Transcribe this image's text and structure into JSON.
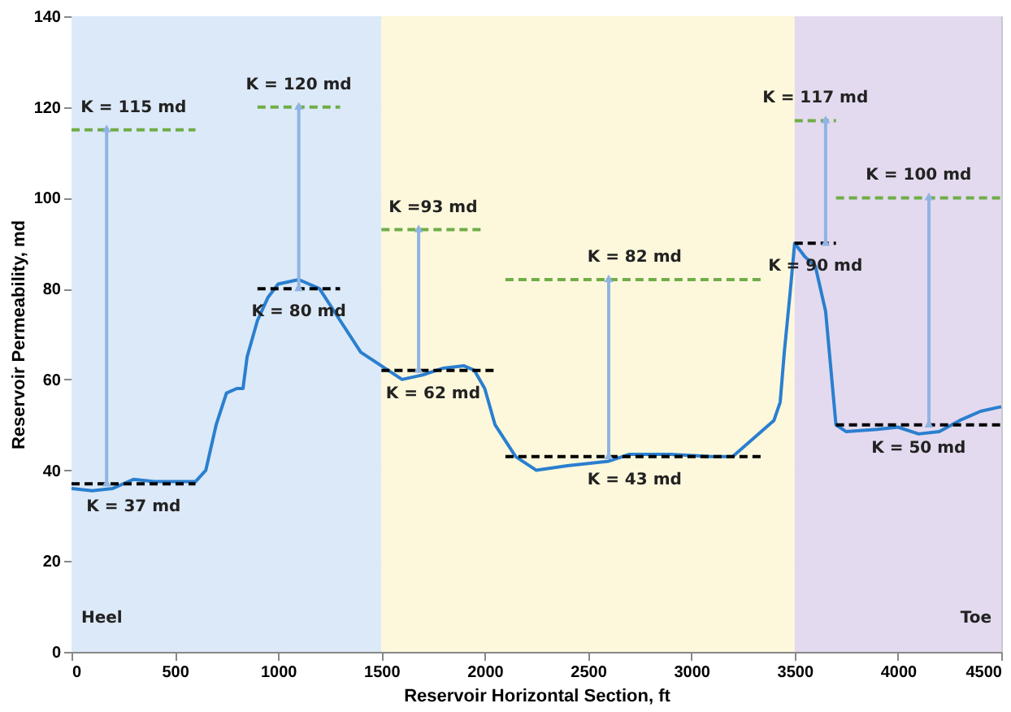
{
  "chart_data": {
    "type": "line",
    "xlabel": "Reservoir Horizontal Section, ft",
    "ylabel": "Reservoir Permeability, md",
    "xlim": [
      0,
      4500
    ],
    "xticks": [
      0,
      500,
      1000,
      1500,
      2000,
      2500,
      3000,
      3500,
      4000,
      4500
    ],
    "ylim": [
      0,
      140
    ],
    "yticks": [
      0,
      20,
      40,
      60,
      80,
      100,
      120,
      140
    ],
    "grid": true,
    "bands": [
      {
        "axis": "x",
        "from": 0,
        "to": 1500,
        "label": "Heel",
        "color": "#dce9f8"
      },
      {
        "axis": "x",
        "from": 1500,
        "to": 3500,
        "color": "#fdf8dc"
      },
      {
        "axis": "x",
        "from": 3500,
        "to": 4500,
        "label": "Toe",
        "color": "#e3daef"
      }
    ],
    "series": [
      {
        "color": "#2a7fcf",
        "line_style": "solid",
        "x": [
          0,
          100,
          200,
          300,
          400,
          600,
          650,
          700,
          750,
          800,
          830,
          850,
          900,
          950,
          1000,
          1100,
          1200,
          1300,
          1400,
          1500,
          1600,
          1700,
          1800,
          1900,
          1950,
          2000,
          2050,
          2150,
          2250,
          2400,
          2600,
          2700,
          2900,
          3100,
          3200,
          3300,
          3400,
          3430,
          3450,
          3480,
          3500,
          3550,
          3600,
          3650,
          3680,
          3700,
          3750,
          3900,
          4000,
          4100,
          4200,
          4300,
          4400,
          4500
        ],
        "values": [
          36,
          35.5,
          36,
          38,
          37.5,
          37.5,
          40,
          50,
          57,
          58,
          58,
          65,
          73,
          78,
          81,
          82,
          80,
          73,
          66,
          63,
          60,
          61,
          62.5,
          63,
          62,
          58,
          50,
          43,
          40,
          41,
          42,
          43.5,
          43.5,
          43,
          43,
          47,
          51,
          55,
          66,
          80,
          90,
          87,
          85,
          75,
          60,
          50,
          48.5,
          49,
          49.5,
          48,
          48.5,
          51,
          53,
          54
        ]
      },
      {
        "color": "#70ad47",
        "line_style": "dashed",
        "x": [
          0,
          600
        ],
        "values": [
          115,
          115
        ]
      },
      {
        "color": "#000000",
        "line_style": "dashed",
        "x": [
          0,
          600
        ],
        "values": [
          37,
          37
        ]
      },
      {
        "color": "#70ad47",
        "line_style": "dashed",
        "x": [
          900,
          1300
        ],
        "values": [
          120,
          120
        ]
      },
      {
        "color": "#000000",
        "line_style": "dashed",
        "x": [
          900,
          1300
        ],
        "values": [
          80,
          80
        ]
      },
      {
        "color": "#70ad47",
        "line_style": "dashed",
        "x": [
          1500,
          2000
        ],
        "values": [
          93,
          93
        ]
      },
      {
        "color": "#000000",
        "line_style": "dashed",
        "x": [
          1500,
          2050
        ],
        "values": [
          62,
          62
        ]
      },
      {
        "color": "#70ad47",
        "line_style": "dashed",
        "x": [
          2100,
          3350
        ],
        "values": [
          82,
          82
        ]
      },
      {
        "color": "#000000",
        "line_style": "dashed",
        "x": [
          2100,
          3350
        ],
        "values": [
          43,
          43
        ]
      },
      {
        "color": "#70ad47",
        "line_style": "dashed",
        "x": [
          3500,
          3700
        ],
        "values": [
          117,
          117
        ]
      },
      {
        "color": "#000000",
        "line_style": "dashed",
        "x": [
          3500,
          3700
        ],
        "values": [
          90,
          90
        ]
      },
      {
        "color": "#70ad47",
        "line_style": "dashed",
        "x": [
          3700,
          4500
        ],
        "values": [
          100,
          100
        ]
      },
      {
        "color": "#000000",
        "line_style": "dashed",
        "x": [
          3700,
          4500
        ],
        "values": [
          50,
          50
        ]
      },
      {
        "color": "#8fb4e3",
        "line_style": "solid",
        "marker": "triangle",
        "x": [
          170,
          170
        ],
        "values": [
          37,
          115
        ]
      },
      {
        "color": "#8fb4e3",
        "line_style": "solid",
        "marker": "triangle",
        "x": [
          1100,
          1100
        ],
        "values": [
          80,
          120
        ]
      },
      {
        "color": "#8fb4e3",
        "line_style": "solid",
        "marker": "triangle",
        "x": [
          1680,
          1680
        ],
        "values": [
          62,
          93
        ]
      },
      {
        "color": "#8fb4e3",
        "line_style": "solid",
        "marker": "triangle",
        "x": [
          2600,
          2600
        ],
        "values": [
          43,
          82
        ]
      },
      {
        "color": "#8fb4e3",
        "line_style": "solid",
        "marker": "triangle",
        "x": [
          3650,
          3650
        ],
        "values": [
          90,
          117
        ]
      },
      {
        "color": "#8fb4e3",
        "line_style": "solid",
        "marker": "triangle",
        "x": [
          4150,
          4150
        ],
        "values": [
          50,
          100
        ]
      }
    ],
    "annotations": [
      {
        "text": "K = 115 md",
        "x": 300,
        "y": 115
      },
      {
        "text": "K = 37 md",
        "x": 300,
        "y": 37
      },
      {
        "text": "K = 120 md",
        "x": 1100,
        "y": 120
      },
      {
        "text": "K = 80 md",
        "x": 1100,
        "y": 80
      },
      {
        "text": "K =93 md",
        "x": 1750,
        "y": 93
      },
      {
        "text": "K = 62 md",
        "x": 1750,
        "y": 62
      },
      {
        "text": "K = 82 md",
        "x": 2725,
        "y": 82
      },
      {
        "text": "K = 43 md",
        "x": 2725,
        "y": 43
      },
      {
        "text": "K = 117 md",
        "x": 3600,
        "y": 117
      },
      {
        "text": "K = 90 md",
        "x": 3600,
        "y": 90
      },
      {
        "text": "K = 100 md",
        "x": 4100,
        "y": 100
      },
      {
        "text": "K = 50 md",
        "x": 4100,
        "y": 50
      }
    ]
  }
}
